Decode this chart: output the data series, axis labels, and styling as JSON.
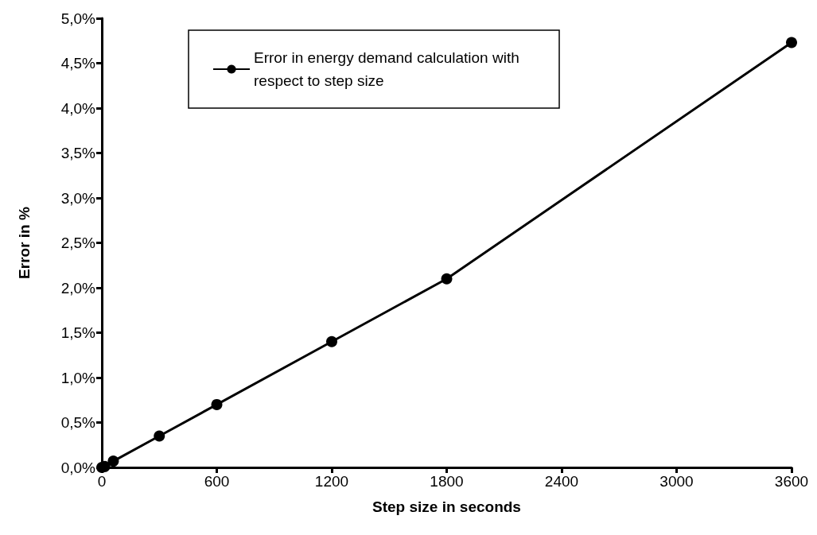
{
  "chart_data": {
    "type": "line",
    "xlabel": "Step size in seconds",
    "ylabel": "Error in %",
    "series": [
      {
        "name": "Error in energy demand calculation with respect to step size",
        "color": "#000000",
        "x": [
          0,
          15,
          60,
          300,
          600,
          1200,
          1800,
          3600
        ],
        "values": [
          0,
          0.01,
          0.07,
          0.35,
          0.7,
          1.4,
          2.1,
          4.73
        ]
      }
    ],
    "xlim": [
      0,
      3600
    ],
    "xticks": [
      0,
      600,
      1200,
      1800,
      2400,
      3000,
      3600
    ],
    "ylim": [
      0,
      5
    ],
    "yticks": [
      {
        "value": 0,
        "label": "0,0%"
      },
      {
        "value": 0.5,
        "label": "0,5%"
      },
      {
        "value": 1,
        "label": "1,0%"
      },
      {
        "value": 1.5,
        "label": "1,5%"
      },
      {
        "value": 2,
        "label": "2,0%"
      },
      {
        "value": 2.5,
        "label": "2,5%"
      },
      {
        "value": 3,
        "label": "3,0%"
      },
      {
        "value": 3.5,
        "label": "3,5%"
      },
      {
        "value": 4,
        "label": "4,0%"
      },
      {
        "value": 4.5,
        "label": "4,5%"
      },
      {
        "value": 5,
        "label": "5,0%"
      }
    ],
    "grid": false,
    "legend": "top left",
    "marker": "circle",
    "line_style": "solid"
  }
}
